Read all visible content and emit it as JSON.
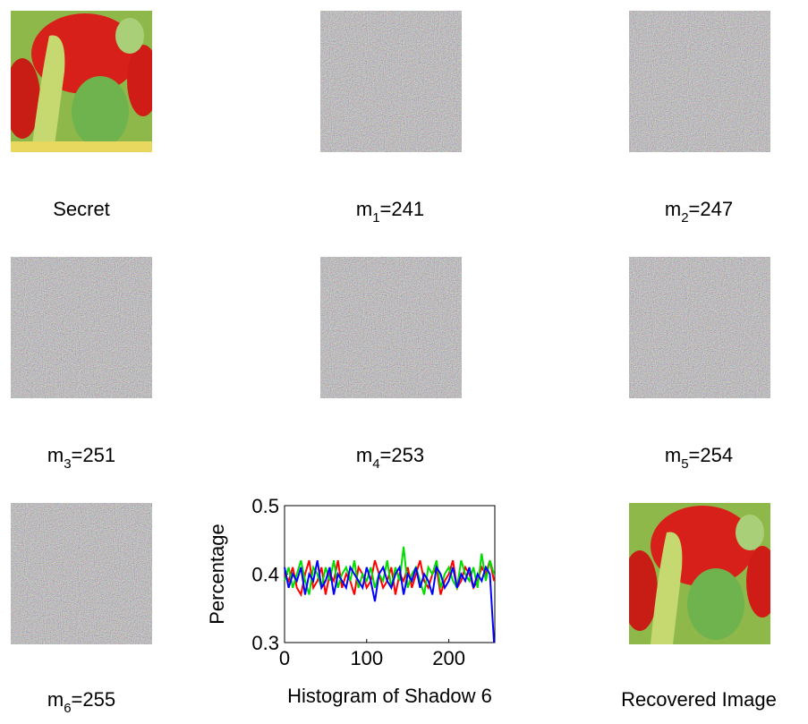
{
  "figure": {
    "secret_caption": "Secret",
    "share_captions": [
      {
        "base": "m",
        "sub": "1",
        "rest": "=241"
      },
      {
        "base": "m",
        "sub": "2",
        "rest": "=247"
      },
      {
        "base": "m",
        "sub": "3",
        "rest": "=251"
      },
      {
        "base": "m",
        "sub": "4",
        "rest": "=253"
      },
      {
        "base": "m",
        "sub": "5",
        "rest": "=254"
      },
      {
        "base": "m",
        "sub": "6",
        "rest": "=255"
      }
    ],
    "recovered_caption": "Recovered Image"
  },
  "chart_data": {
    "type": "line",
    "xlabel": "Histogram of Shadow 6",
    "ylabel": "Percentage",
    "xlim": [
      0,
      256
    ],
    "ylim": [
      0.3,
      0.5
    ],
    "xticks": [
      0,
      100,
      200
    ],
    "yticks": [
      0.3,
      0.4,
      0.5
    ],
    "x": [
      0,
      5,
      10,
      15,
      20,
      25,
      30,
      35,
      40,
      45,
      50,
      55,
      60,
      65,
      70,
      75,
      80,
      85,
      90,
      95,
      100,
      105,
      110,
      115,
      120,
      125,
      130,
      135,
      140,
      145,
      150,
      155,
      160,
      165,
      170,
      175,
      180,
      185,
      190,
      195,
      200,
      205,
      210,
      215,
      220,
      225,
      230,
      235,
      240,
      245,
      250,
      255
    ],
    "series": [
      {
        "color": "#ff0000",
        "values": [
          0.4,
          0.39,
          0.41,
          0.38,
          0.37,
          0.4,
          0.42,
          0.38,
          0.39,
          0.41,
          0.37,
          0.4,
          0.39,
          0.42,
          0.38,
          0.4,
          0.39,
          0.37,
          0.41,
          0.4,
          0.38,
          0.39,
          0.42,
          0.4,
          0.38,
          0.39,
          0.41,
          0.37,
          0.4,
          0.39,
          0.41,
          0.38,
          0.4,
          0.42,
          0.39,
          0.38,
          0.4,
          0.41,
          0.37,
          0.39,
          0.4,
          0.42,
          0.38,
          0.39,
          0.41,
          0.4,
          0.38,
          0.39,
          0.41,
          0.4,
          0.42,
          0.39
        ]
      },
      {
        "color": "#00dd00",
        "values": [
          0.39,
          0.41,
          0.38,
          0.4,
          0.42,
          0.39,
          0.37,
          0.41,
          0.4,
          0.38,
          0.41,
          0.39,
          0.42,
          0.38,
          0.4,
          0.41,
          0.39,
          0.42,
          0.38,
          0.4,
          0.39,
          0.41,
          0.38,
          0.4,
          0.39,
          0.42,
          0.38,
          0.41,
          0.39,
          0.44,
          0.38,
          0.4,
          0.41,
          0.39,
          0.37,
          0.41,
          0.4,
          0.42,
          0.38,
          0.4,
          0.41,
          0.39,
          0.38,
          0.42,
          0.4,
          0.39,
          0.41,
          0.38,
          0.43,
          0.39,
          0.42,
          0.4
        ]
      },
      {
        "color": "#0000ff",
        "values": [
          0.41,
          0.38,
          0.4,
          0.39,
          0.41,
          0.37,
          0.4,
          0.39,
          0.42,
          0.38,
          0.39,
          0.41,
          0.37,
          0.4,
          0.39,
          0.38,
          0.41,
          0.4,
          0.39,
          0.38,
          0.41,
          0.39,
          0.36,
          0.4,
          0.41,
          0.39,
          0.38,
          0.4,
          0.41,
          0.37,
          0.4,
          0.39,
          0.41,
          0.38,
          0.4,
          0.39,
          0.37,
          0.41,
          0.4,
          0.38,
          0.39,
          0.41,
          0.38,
          0.4,
          0.39,
          0.41,
          0.38,
          0.4,
          0.39,
          0.41,
          0.4,
          0.3
        ]
      }
    ]
  }
}
